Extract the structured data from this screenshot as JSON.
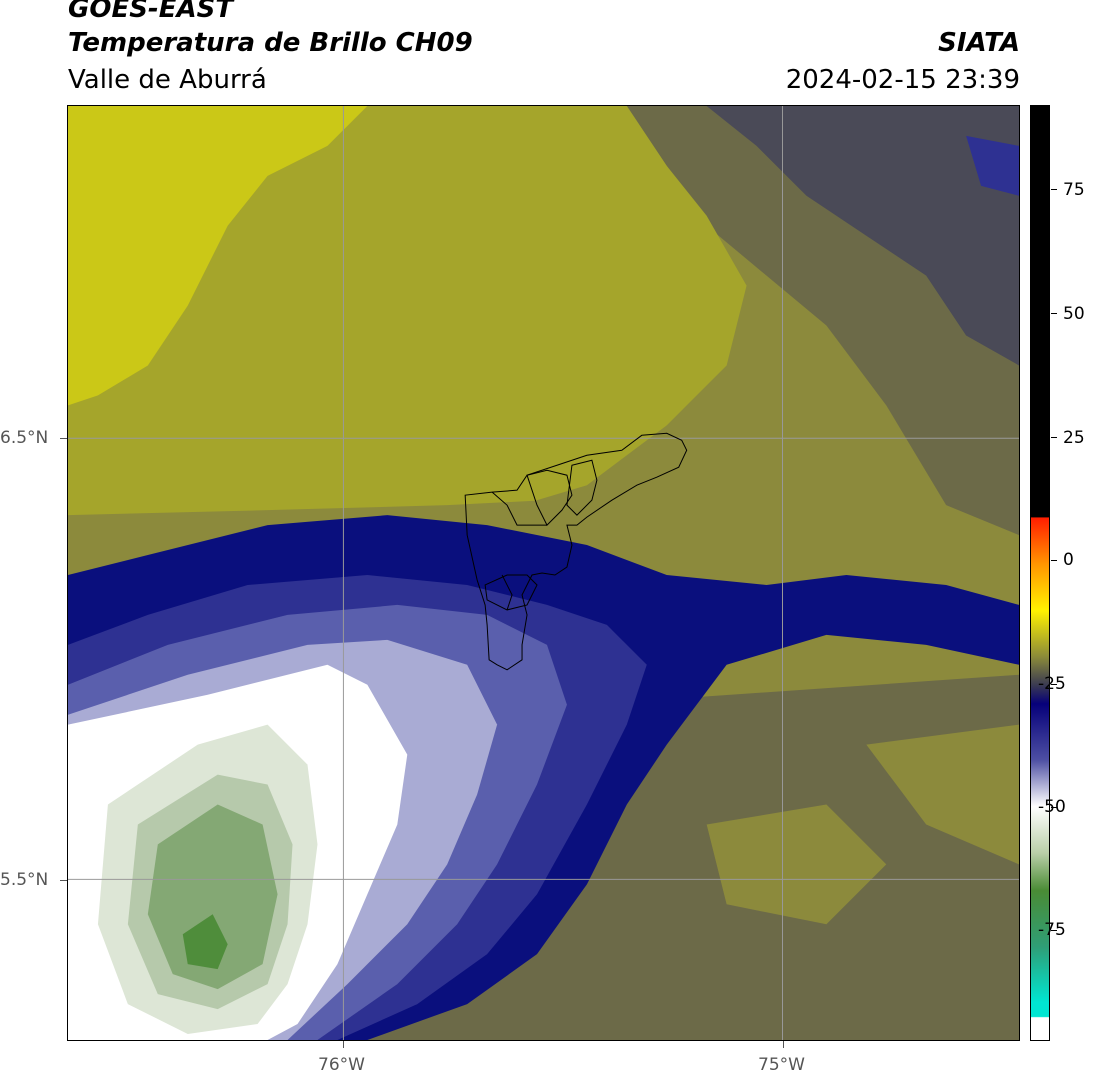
{
  "header": {
    "satellite": "GOES-EAST",
    "product": "Temperatura de Brillo CH09",
    "region": "Valle de Aburrá",
    "agency": "SIATA",
    "datetime": "2024-02-15 23:39"
  },
  "map": {
    "lat_labels": [
      "6.5°N",
      "5.5°N"
    ],
    "lon_labels": [
      "76°W",
      "75°W"
    ],
    "colors": {
      "bright_yellow": "#cbc817",
      "yellow_olive": "#a5a52b",
      "olive": "#8c8a3c",
      "olive_dark": "#6c6a48",
      "slate": "#4a4a57",
      "navy": "#0a0f7d",
      "blue": "#2e3192",
      "mid_blue": "#5a5fad",
      "light_blue": "#a9abd4",
      "white": "#ffffff",
      "pale_green": "#dde6d6",
      "light_green": "#b6c9ab",
      "green": "#84a874",
      "dark_green": "#4f8d3b",
      "boundary": "#000000"
    }
  },
  "colorbar": {
    "ticks": [
      "75",
      "50",
      "25",
      "0",
      "-25",
      "-50",
      "-75"
    ],
    "colors": {
      "black": "#000000",
      "red": "#ff1e00",
      "orange": "#ff9400",
      "yellow": "#fff200",
      "olive": "#8a8a39",
      "navy": "#06007a",
      "blue": "#4d4fa3",
      "white": "#ffffff",
      "green": "#4a8c35",
      "teal": "#00e6d2"
    }
  }
}
